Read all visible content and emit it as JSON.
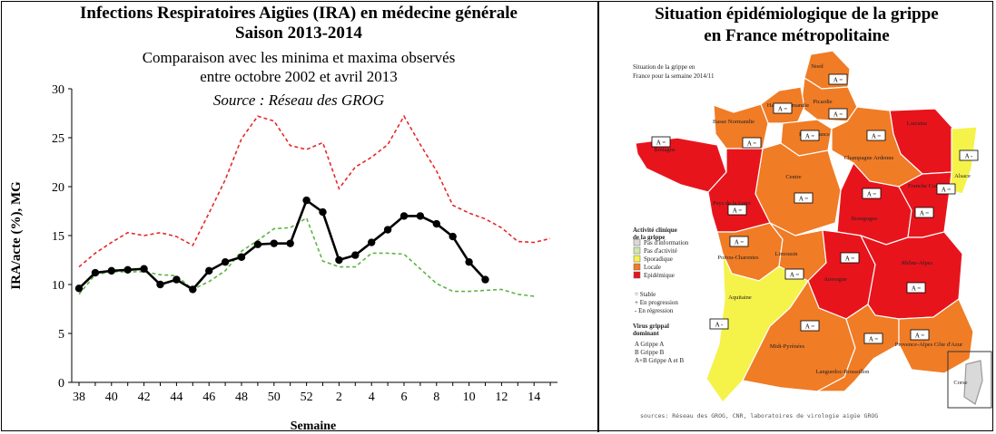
{
  "left_panel": {
    "title_line1": "Infections Respiratoires Aigües (IRA) en médecine générale",
    "title_line2": "Saison 2013-2014",
    "subtitle_line1": "Comparaison avec les minima et maxima observés",
    "subtitle_line2": "entre octobre 2002 et avril 2013",
    "source": "Source : Réseau des GROG"
  },
  "chart_data": {
    "type": "line",
    "xlabel": "Semaine",
    "ylabel": "IRA/acte (%), MG",
    "ylim": [
      0,
      30
    ],
    "yticks": [
      0,
      5,
      10,
      15,
      20,
      25,
      30
    ],
    "x_weeks": [
      "38",
      "39",
      "40",
      "41",
      "42",
      "43",
      "44",
      "45",
      "46",
      "47",
      "48",
      "49",
      "50",
      "51",
      "52",
      "1",
      "2",
      "3",
      "4",
      "5",
      "6",
      "7",
      "8",
      "9",
      "10",
      "11",
      "12",
      "13",
      "14",
      "15"
    ],
    "xtick_labels": [
      "38",
      "40",
      "42",
      "44",
      "46",
      "48",
      "50",
      "52",
      "2",
      "4",
      "6",
      "8",
      "10",
      "12",
      "14"
    ],
    "grid": false,
    "series": [
      {
        "role": "maximum",
        "color": "#e8282a",
        "style": "dashed",
        "values": [
          11.8,
          13.2,
          14.3,
          15.3,
          15.0,
          15.3,
          14.9,
          14.0,
          17.3,
          20.7,
          24.9,
          27.2,
          26.7,
          24.2,
          23.8,
          24.5,
          19.8,
          22.0,
          23.0,
          24.3,
          27.2,
          24.3,
          21.6,
          18.1,
          17.3,
          16.7,
          15.8,
          14.4,
          14.3,
          14.7
        ]
      },
      {
        "role": "minimum",
        "color": "#5cb541",
        "style": "dashed",
        "values": [
          9.0,
          11.0,
          11.3,
          11.3,
          11.3,
          11.0,
          10.9,
          9.5,
          10.3,
          11.4,
          13.4,
          14.5,
          15.7,
          15.8,
          16.8,
          12.4,
          11.8,
          11.8,
          13.2,
          13.2,
          13.1,
          11.6,
          10.1,
          9.3,
          9.3,
          9.4,
          9.5,
          9.0,
          8.8,
          null
        ]
      },
      {
        "role": "2013-2014",
        "color": "#000000",
        "style": "solid",
        "values": [
          9.6,
          11.2,
          11.4,
          11.5,
          11.6,
          10.0,
          10.5,
          9.5,
          11.4,
          12.3,
          12.8,
          14.1,
          14.2,
          14.2,
          18.6,
          17.4,
          12.5,
          13.0,
          14.3,
          15.6,
          17.0,
          17.0,
          16.2,
          14.9,
          12.3,
          10.5,
          null,
          null,
          null,
          null
        ]
      }
    ]
  },
  "right_panel": {
    "title_line1": "Situation épidémiologique de la grippe",
    "title_line2": "en France métropolitaine",
    "map_heading_line1": "Situation de la grippe en",
    "map_heading_line2": "France pour la semaine 2014/11",
    "colors": {
      "epidemique": "#e8141c",
      "locale": "#f07c26",
      "sporadique": "#f5f24a",
      "pas_activite": "#cfe8a9",
      "pas_information": "#d9d9d9"
    },
    "regions": [
      {
        "name": "Nord",
        "level": "locale",
        "badge": "A ="
      },
      {
        "name": "Picardie",
        "level": "locale",
        "badge": "A ="
      },
      {
        "name": "Haute Normandie",
        "level": "locale",
        "badge": "A ="
      },
      {
        "name": "Basse Normandie",
        "level": "locale",
        "badge": "A ="
      },
      {
        "name": "Ile de France",
        "level": "locale",
        "badge": "A ="
      },
      {
        "name": "Lorraine",
        "level": "epidemique",
        "badge": "A ="
      },
      {
        "name": "Alsace",
        "level": "sporadique",
        "badge": "A -"
      },
      {
        "name": "Bretagne",
        "level": "epidemique",
        "badge": "A ="
      },
      {
        "name": "Champagne Ardenne",
        "level": "locale",
        "badge": "A ="
      },
      {
        "name": "Centre",
        "level": "locale",
        "badge": "A ="
      },
      {
        "name": "Pays de la Loire",
        "level": "epidemique",
        "badge": "A ="
      },
      {
        "name": "Bourgogne",
        "level": "epidemique",
        "badge": "A ="
      },
      {
        "name": "Franche Comté",
        "level": "epidemique",
        "badge": "A ="
      },
      {
        "name": "Poitou-Charentes",
        "level": "locale",
        "badge": "A ="
      },
      {
        "name": "Limousin",
        "level": "locale",
        "badge": "A ="
      },
      {
        "name": "Auvergne",
        "level": "epidemique",
        "badge": "A ="
      },
      {
        "name": "Rhône-Alpes",
        "level": "epidemique",
        "badge": "A ="
      },
      {
        "name": "Aquitaine",
        "level": "sporadique",
        "badge": "A -"
      },
      {
        "name": "Midi-Pyrénées",
        "level": "locale",
        "badge": "A ="
      },
      {
        "name": "Languedoc-Roussillon",
        "level": "locale",
        "badge": "A ="
      },
      {
        "name": "Provence-Alpes Côte d'Azur",
        "level": "locale",
        "badge": "A ="
      },
      {
        "name": "Corse",
        "level": "pas_information",
        "badge": ""
      }
    ],
    "legend": {
      "activity_title_line1": "Activité clinique",
      "activity_title_line2": "de la grippe",
      "activity_items": [
        {
          "label": "Pas d'information",
          "color": "#d9d9d9"
        },
        {
          "label": "Pas d'activité",
          "color": "#cfe8a9"
        },
        {
          "label": "Sporadique",
          "color": "#f5f24a"
        },
        {
          "label": "Locale",
          "color": "#f07c26"
        },
        {
          "label": "Epidémique",
          "color": "#e8141c"
        }
      ],
      "trend_items": [
        "= Stable",
        "+ En progression",
        "- En régression"
      ],
      "virus_title_line1": "Virus grippal",
      "virus_title_line2": "dominant",
      "virus_items": [
        "A Grippe A",
        "B Grippe B",
        "A+B Grippe A et B"
      ]
    },
    "sources": "sources: Réseau des GROG, CNR, laboratoires de virologie aigüe GROG"
  }
}
